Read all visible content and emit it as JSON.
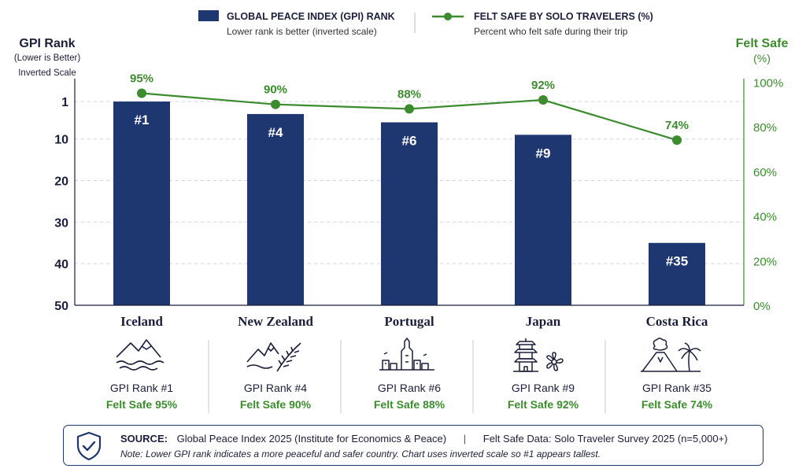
{
  "chart_data": {
    "type": "bar",
    "categories": [
      "Iceland",
      "New Zealand",
      "Portugal",
      "Japan",
      "Costa Rica"
    ],
    "series": [
      {
        "name": "GLOBAL PEACE INDEX (GPI) RANK",
        "values": [
          1,
          4,
          6,
          9,
          35
        ],
        "axis": "left",
        "labels": [
          "#1",
          "#4",
          "#6",
          "#9",
          "#35"
        ],
        "color": "#1f3770"
      },
      {
        "name": "FELT SAFE BY SOLO TRAVELERS (%)",
        "values": [
          95,
          90,
          88,
          92,
          74
        ],
        "axis": "right",
        "type": "line",
        "labels": [
          "95%",
          "90%",
          "88%",
          "92%",
          "74%"
        ],
        "color": "#3c8c2f"
      }
    ],
    "legend": {
      "position": "top-center",
      "items": [
        {
          "title": "GLOBAL PEACE INDEX (GPI) RANK",
          "subtitle": "Lower rank is better (inverted scale)"
        },
        {
          "title": "FELT SAFE BY SOLO TRAVELERS (%)",
          "subtitle": "Percent who felt safe during their trip"
        }
      ]
    },
    "y_left": {
      "title": "GPI Rank",
      "subtitle": "(Lower is Better)",
      "note": "Inverted Scale",
      "ticks": [
        1,
        10,
        20,
        30,
        40,
        50
      ],
      "range": [
        -4.5,
        50
      ],
      "inverted": true
    },
    "y_right": {
      "title": "Felt Safe",
      "unit": "(%)",
      "ticks": [
        "100%",
        "80%",
        "60%",
        "40%",
        "20%",
        "0%"
      ],
      "range": [
        0,
        100
      ]
    },
    "grid": true
  },
  "panels": [
    {
      "country": "Iceland",
      "icon": "mountains-water-icon",
      "rank_text": "GPI Rank #1",
      "safe_text": "Felt Safe 95%"
    },
    {
      "country": "New Zealand",
      "icon": "mountains-fern-icon",
      "rank_text": "GPI Rank #4",
      "safe_text": "Felt Safe 90%"
    },
    {
      "country": "Portugal",
      "icon": "city-tower-icon",
      "rank_text": "GPI Rank #6",
      "safe_text": "Felt Safe 88%"
    },
    {
      "country": "Japan",
      "icon": "pagoda-blossom-icon",
      "rank_text": "GPI Rank #9",
      "safe_text": "Felt Safe 92%"
    },
    {
      "country": "Costa Rica",
      "icon": "volcano-palm-icon",
      "rank_text": "GPI Rank #35",
      "safe_text": "Felt Safe 74%"
    }
  ],
  "source": {
    "label": "SOURCE:",
    "text1": "Global Peace Index 2025 (Institute for Economics & Peace)",
    "separator": "|",
    "text2": "Felt Safe Data: Solo Traveler Survey 2025 (n=5,000+)",
    "note": "Note: Lower GPI rank indicates a more peaceful and safer country. Chart uses inverted scale so #1 appears tallest.",
    "icon": "shield-check-icon"
  },
  "colors": {
    "bar": "#1f3770",
    "line": "#3c8c2f",
    "grid": "#cfd4de",
    "text": "#1b1f3b"
  }
}
